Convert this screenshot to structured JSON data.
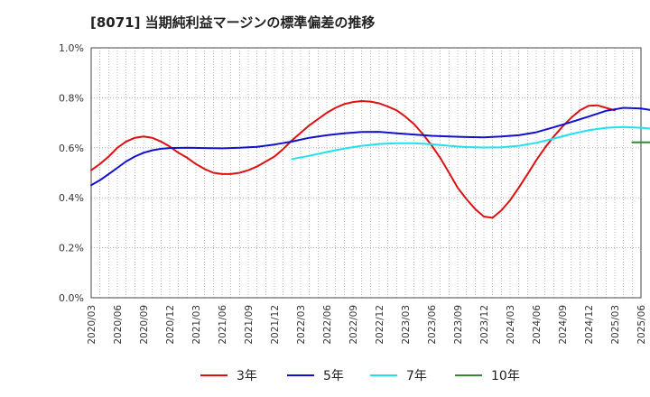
{
  "chart_data": {
    "type": "line",
    "title": "[8071]  当期純利益マージンの標準偏差の推移",
    "xlabel": "",
    "ylabel": "",
    "ylim": [
      0.0,
      1.0
    ],
    "y_ticks": [
      "0.0%",
      "0.2%",
      "0.4%",
      "0.6%",
      "0.8%",
      "1.0%"
    ],
    "x_ticks": [
      "2020/03",
      "2020/06",
      "2020/09",
      "2020/12",
      "2021/03",
      "2021/06",
      "2021/09",
      "2021/12",
      "2022/03",
      "2022/06",
      "2022/09",
      "2022/12",
      "2023/03",
      "2023/06",
      "2023/09",
      "2023/12",
      "2024/03",
      "2024/06",
      "2024/09",
      "2024/12",
      "2025/03",
      "2025/06"
    ],
    "grid": true,
    "legend_position": "bottom",
    "series": [
      {
        "name": "3年",
        "color": "#dd1111",
        "points": [
          [
            0.0,
            0.51
          ],
          [
            0.33,
            0.535
          ],
          [
            0.67,
            0.565
          ],
          [
            1.0,
            0.6
          ],
          [
            1.33,
            0.625
          ],
          [
            1.67,
            0.64
          ],
          [
            2.0,
            0.645
          ],
          [
            2.33,
            0.64
          ],
          [
            2.67,
            0.625
          ],
          [
            3.0,
            0.605
          ],
          [
            3.33,
            0.58
          ],
          [
            3.67,
            0.56
          ],
          [
            4.0,
            0.535
          ],
          [
            4.33,
            0.515
          ],
          [
            4.67,
            0.5
          ],
          [
            5.0,
            0.495
          ],
          [
            5.33,
            0.495
          ],
          [
            5.67,
            0.5
          ],
          [
            6.0,
            0.51
          ],
          [
            6.33,
            0.525
          ],
          [
            6.67,
            0.545
          ],
          [
            7.0,
            0.565
          ],
          [
            7.33,
            0.595
          ],
          [
            7.67,
            0.63
          ],
          [
            8.0,
            0.66
          ],
          [
            8.33,
            0.69
          ],
          [
            8.67,
            0.715
          ],
          [
            9.0,
            0.74
          ],
          [
            9.33,
            0.76
          ],
          [
            9.67,
            0.775
          ],
          [
            10.0,
            0.783
          ],
          [
            10.33,
            0.787
          ],
          [
            10.67,
            0.785
          ],
          [
            11.0,
            0.778
          ],
          [
            11.33,
            0.765
          ],
          [
            11.67,
            0.75
          ],
          [
            12.0,
            0.725
          ],
          [
            12.33,
            0.695
          ],
          [
            12.67,
            0.655
          ],
          [
            13.0,
            0.61
          ],
          [
            13.33,
            0.56
          ],
          [
            13.67,
            0.5
          ],
          [
            14.0,
            0.44
          ],
          [
            14.33,
            0.395
          ],
          [
            14.67,
            0.355
          ],
          [
            15.0,
            0.325
          ],
          [
            15.33,
            0.32
          ],
          [
            15.67,
            0.35
          ],
          [
            16.0,
            0.39
          ],
          [
            16.33,
            0.44
          ],
          [
            16.67,
            0.495
          ],
          [
            17.0,
            0.55
          ],
          [
            17.33,
            0.6
          ],
          [
            17.67,
            0.645
          ],
          [
            18.0,
            0.685
          ],
          [
            18.33,
            0.72
          ],
          [
            18.67,
            0.75
          ],
          [
            19.0,
            0.768
          ],
          [
            19.33,
            0.77
          ],
          [
            19.67,
            0.76
          ],
          [
            20.0,
            0.75
          ]
        ]
      },
      {
        "name": "5年",
        "color": "#1111cc",
        "points": [
          [
            0.0,
            0.45
          ],
          [
            0.33,
            0.47
          ],
          [
            0.67,
            0.495
          ],
          [
            1.0,
            0.52
          ],
          [
            1.33,
            0.545
          ],
          [
            1.67,
            0.565
          ],
          [
            2.0,
            0.58
          ],
          [
            2.33,
            0.59
          ],
          [
            2.67,
            0.596
          ],
          [
            3.0,
            0.599
          ],
          [
            3.67,
            0.6
          ],
          [
            4.33,
            0.599
          ],
          [
            5.0,
            0.598
          ],
          [
            5.67,
            0.6
          ],
          [
            6.33,
            0.604
          ],
          [
            7.0,
            0.613
          ],
          [
            7.67,
            0.625
          ],
          [
            8.33,
            0.64
          ],
          [
            9.0,
            0.65
          ],
          [
            9.67,
            0.658
          ],
          [
            10.33,
            0.663
          ],
          [
            11.0,
            0.664
          ],
          [
            11.67,
            0.658
          ],
          [
            12.33,
            0.653
          ],
          [
            13.0,
            0.648
          ],
          [
            13.67,
            0.645
          ],
          [
            14.33,
            0.643
          ],
          [
            15.0,
            0.642
          ],
          [
            15.67,
            0.645
          ],
          [
            16.33,
            0.65
          ],
          [
            17.0,
            0.662
          ],
          [
            17.67,
            0.682
          ],
          [
            18.33,
            0.703
          ],
          [
            19.0,
            0.725
          ],
          [
            19.67,
            0.748
          ],
          [
            20.33,
            0.76
          ],
          [
            21.0,
            0.757
          ],
          [
            21.33,
            0.752
          ]
        ]
      },
      {
        "name": "7年",
        "color": "#22e0ee",
        "points": [
          [
            7.67,
            0.555
          ],
          [
            8.33,
            0.568
          ],
          [
            9.0,
            0.583
          ],
          [
            9.67,
            0.597
          ],
          [
            10.33,
            0.608
          ],
          [
            11.0,
            0.615
          ],
          [
            11.67,
            0.618
          ],
          [
            12.33,
            0.618
          ],
          [
            13.0,
            0.614
          ],
          [
            13.67,
            0.608
          ],
          [
            14.33,
            0.603
          ],
          [
            15.0,
            0.601
          ],
          [
            15.67,
            0.602
          ],
          [
            16.33,
            0.608
          ],
          [
            17.0,
            0.62
          ],
          [
            17.67,
            0.637
          ],
          [
            18.33,
            0.655
          ],
          [
            19.0,
            0.67
          ],
          [
            19.67,
            0.68
          ],
          [
            20.33,
            0.683
          ],
          [
            21.0,
            0.68
          ],
          [
            21.33,
            0.677
          ]
        ]
      },
      {
        "name": "10年",
        "color": "#338833",
        "points": [
          [
            20.67,
            0.622
          ],
          [
            21.0,
            0.622
          ],
          [
            21.33,
            0.622
          ]
        ]
      }
    ]
  }
}
